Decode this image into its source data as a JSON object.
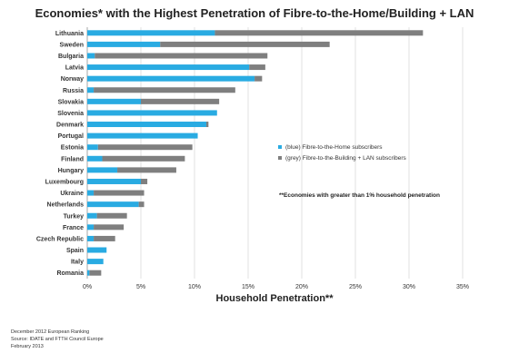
{
  "title": "Economies* with the Highest Penetration of Fibre-to-the-Home/Building + LAN",
  "footer": {
    "line1": "December 2012 European Ranking",
    "line2": "Source: IDATE and FTTH Council Europe",
    "line3": "February 2013"
  },
  "annotation": "**Economies with greater than 1% household penetration",
  "chart_data": {
    "type": "bar",
    "orientation": "horizontal",
    "stacked": true,
    "title": "Economies* with the Highest Penetration of Fibre-to-the-Home/Building + LAN",
    "xlabel": "Household Penetration**",
    "ylabel": "",
    "xlim": [
      0,
      35
    ],
    "xticks": [
      "0%",
      "5%",
      "10%",
      "15%",
      "20%",
      "25%",
      "30%",
      "35%"
    ],
    "grid": true,
    "legend_position": "right",
    "categories": [
      "Lithuania",
      "Sweden",
      "Bulgaria",
      "Latvia",
      "Norway",
      "Russia",
      "Slovakia",
      "Slovenia",
      "Denmark",
      "Portugal",
      "Estonia",
      "Finland",
      "Hungary",
      "Luxembourg",
      "Ukraine",
      "Netherlands",
      "Turkey",
      "France",
      "Czech Republic",
      "Spain",
      "Italy",
      "Romania"
    ],
    "series": [
      {
        "name": "(blue) Fibre-to-the-Home subscribers",
        "color": "#29abe2",
        "values": [
          11.9,
          6.8,
          0.7,
          15.1,
          15.6,
          0.6,
          5.0,
          12.1,
          11.1,
          10.3,
          1.0,
          1.4,
          2.8,
          5.0,
          0.6,
          4.8,
          0.9,
          0.6,
          0.6,
          1.8,
          1.5,
          0.2
        ]
      },
      {
        "name": "(grey) Fibre-to-the-Building + LAN subscribers",
        "color": "#7f7f7f",
        "values": [
          19.4,
          15.8,
          16.1,
          1.5,
          0.7,
          13.2,
          7.3,
          0.0,
          0.2,
          0.0,
          8.8,
          7.7,
          5.5,
          0.6,
          4.7,
          0.5,
          2.8,
          2.8,
          2.0,
          0.0,
          0.0,
          1.1
        ]
      }
    ]
  }
}
